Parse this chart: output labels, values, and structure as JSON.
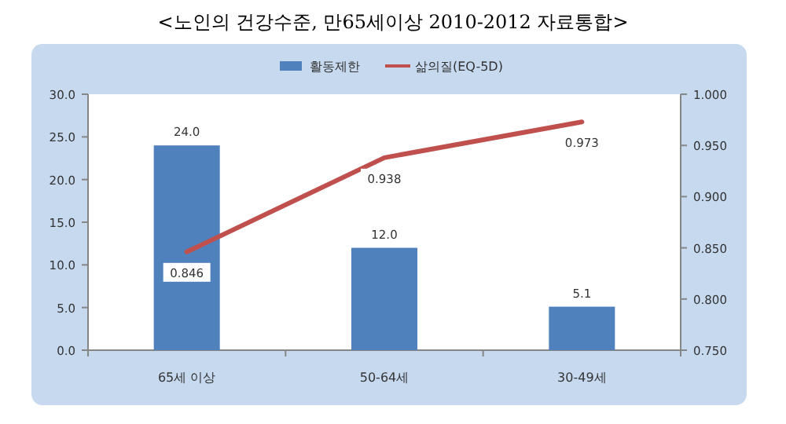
{
  "chart_data": {
    "type": "bar",
    "title": "<노인의 건강수준, 만65세이상 2010-2012 자료통합>",
    "categories": [
      "65세 이상",
      "50-64세",
      "30-49세"
    ],
    "series": [
      {
        "name": "활동제한",
        "color": "#4f81bd",
        "values": [
          24.0,
          12.0,
          5.1
        ],
        "value_labels": [
          "24.0",
          "12.0",
          "5.1"
        ]
      },
      {
        "name": "삶의질(EQ-5D)",
        "type": "line",
        "axis": "y2",
        "color": "#c0504d",
        "values": [
          0.846,
          0.938,
          0.973
        ],
        "value_labels": [
          "0.846",
          "0.938",
          "0.973"
        ]
      }
    ],
    "ylim": [
      0,
      30
    ],
    "yticks": [
      {
        "value": 0,
        "label": "0.0"
      },
      {
        "value": 5,
        "label": "5.0"
      },
      {
        "value": 10,
        "label": "10.0"
      },
      {
        "value": 15,
        "label": "15.0"
      },
      {
        "value": 20,
        "label": "20.0"
      },
      {
        "value": 25,
        "label": "25.0"
      },
      {
        "value": 30,
        "label": "30.0"
      }
    ],
    "y2lim": [
      0.75,
      1
    ],
    "y2ticks": [
      {
        "value": 0.75,
        "label": "0.750"
      },
      {
        "value": 0.8,
        "label": "0.800"
      },
      {
        "value": 0.85,
        "label": "0.850"
      },
      {
        "value": 0.9,
        "label": "0.900"
      },
      {
        "value": 0.95,
        "label": "0.950"
      },
      {
        "value": 1,
        "label": "1.000"
      }
    ],
    "legend": "top"
  }
}
